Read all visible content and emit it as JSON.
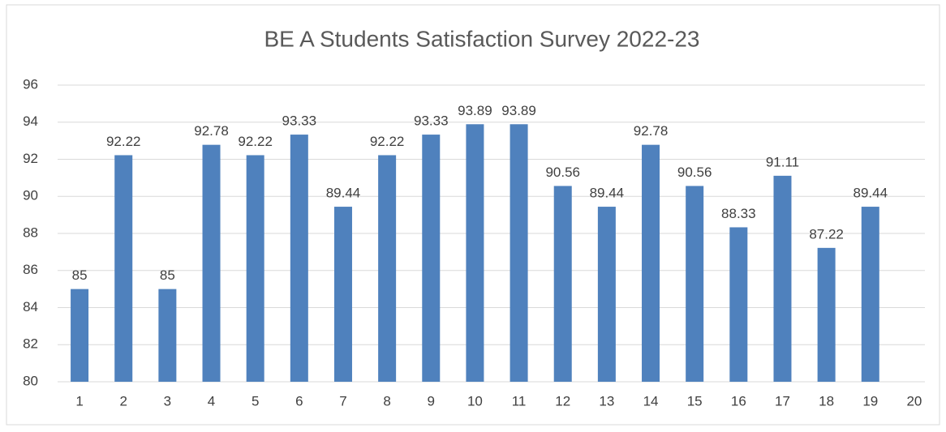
{
  "chart_data": {
    "type": "bar",
    "title": "BE A Students Satisfaction Survey 2022-23",
    "categories": [
      "1",
      "2",
      "3",
      "4",
      "5",
      "6",
      "7",
      "8",
      "9",
      "10",
      "11",
      "12",
      "13",
      "14",
      "15",
      "16",
      "17",
      "18",
      "19",
      "20"
    ],
    "values": [
      85,
      92.22,
      85,
      92.78,
      92.22,
      93.33,
      89.44,
      92.22,
      93.33,
      93.89,
      93.89,
      90.56,
      89.44,
      92.78,
      90.56,
      88.33,
      91.11,
      87.22,
      89.44,
      null
    ],
    "color": "#4f81bd",
    "ylim": [
      80,
      96
    ],
    "yticks": [
      80,
      82,
      84,
      86,
      88,
      90,
      92,
      94,
      96
    ],
    "grid": true
  }
}
